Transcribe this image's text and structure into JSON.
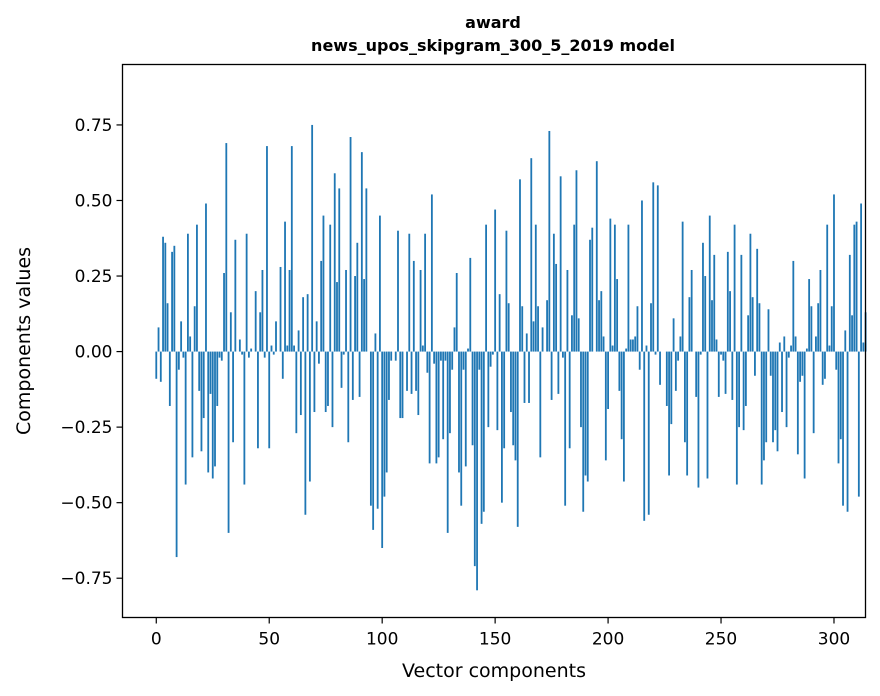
{
  "chart_data": {
    "type": "bar",
    "title": "award",
    "subtitle": "news_upos_skipgram_300_5_2019 model",
    "xlabel": "Vector components",
    "ylabel": "Components values",
    "xlim": [
      -14.95,
      313.95
    ],
    "ylim": [
      -0.88,
      0.95
    ],
    "grid": false,
    "bar_color": "#1f77b4",
    "x_ticks": [
      0,
      50,
      100,
      150,
      200,
      250,
      300
    ],
    "x_tick_labels": [
      "0",
      "50",
      "100",
      "150",
      "200",
      "250",
      "300"
    ],
    "y_ticks": [
      0.75,
      0.5,
      0.25,
      0.0,
      -0.25,
      -0.5,
      -0.75
    ],
    "y_tick_labels": [
      "0.75",
      "0.50",
      "0.25",
      "0.00",
      "−0.25",
      "−0.50",
      "−0.75"
    ],
    "values": [
      -0.09,
      0.08,
      -0.1,
      0.38,
      0.36,
      0.16,
      -0.18,
      0.33,
      0.35,
      -0.68,
      -0.06,
      0.1,
      -0.02,
      -0.44,
      0.39,
      0.05,
      -0.35,
      0.15,
      0.42,
      -0.13,
      -0.33,
      -0.22,
      0.49,
      -0.4,
      -0.14,
      -0.42,
      -0.38,
      -0.18,
      -0.02,
      -0.03,
      0.26,
      0.69,
      -0.6,
      0.13,
      -0.3,
      0.37,
      0.0,
      0.04,
      -0.01,
      -0.44,
      0.39,
      -0.02,
      0.01,
      0.0,
      0.2,
      -0.32,
      0.13,
      0.27,
      -0.02,
      0.68,
      -0.32,
      0.02,
      -0.01,
      0.1,
      0.0,
      0.28,
      -0.09,
      0.43,
      0.02,
      0.27,
      0.68,
      0.02,
      -0.27,
      0.07,
      -0.21,
      0.18,
      -0.54,
      0.19,
      -0.43,
      0.75,
      -0.2,
      0.1,
      -0.04,
      0.3,
      0.45,
      -0.2,
      -0.18,
      0.42,
      -0.25,
      0.59,
      0.23,
      0.54,
      -0.12,
      -0.01,
      0.27,
      -0.3,
      0.71,
      -0.16,
      0.25,
      0.36,
      -0.15,
      0.66,
      0.24,
      0.54,
      0.0,
      -0.51,
      -0.59,
      0.06,
      -0.52,
      0.45,
      -0.65,
      -0.48,
      -0.4,
      -0.16,
      -0.03,
      0.0,
      -0.03,
      0.4,
      -0.22,
      -0.22,
      0.0,
      -0.13,
      0.39,
      -0.14,
      0.3,
      -0.13,
      -0.21,
      0.27,
      0.02,
      0.39,
      -0.07,
      -0.37,
      0.52,
      -0.04,
      -0.37,
      -0.35,
      -0.03,
      -0.29,
      -0.03,
      -0.6,
      -0.27,
      -0.06,
      0.08,
      0.26,
      -0.4,
      -0.51,
      -0.06,
      -0.38,
      0.01,
      0.31,
      -0.31,
      -0.71,
      -0.79,
      -0.06,
      -0.57,
      -0.53,
      0.42,
      -0.25,
      -0.05,
      -0.01,
      0.47,
      -0.26,
      0.19,
      -0.5,
      -0.32,
      0.4,
      0.16,
      -0.2,
      -0.31,
      -0.36,
      -0.58,
      0.57,
      0.15,
      -0.17,
      0.06,
      -0.17,
      0.64,
      0.1,
      0.42,
      0.15,
      -0.35,
      0.08,
      0.0,
      0.17,
      0.73,
      -0.16,
      0.39,
      0.29,
      -0.14,
      0.58,
      -0.02,
      -0.51,
      0.27,
      -0.32,
      0.12,
      0.42,
      0.6,
      0.11,
      -0.25,
      -0.53,
      -0.41,
      -0.43,
      0.37,
      0.41,
      0.0,
      0.63,
      0.17,
      0.2,
      0.05,
      -0.36,
      -0.19,
      0.44,
      0.02,
      0.42,
      0.24,
      -0.13,
      -0.29,
      -0.43,
      0.01,
      0.42,
      0.04,
      0.04,
      0.05,
      0.15,
      -0.06,
      0.5,
      -0.56,
      0.02,
      -0.54,
      0.16,
      0.56,
      -0.01,
      0.55,
      -0.11,
      0.0,
      0.0,
      -0.18,
      -0.41,
      -0.24,
      0.11,
      -0.13,
      -0.03,
      0.05,
      0.43,
      -0.3,
      -0.41,
      0.18,
      0.27,
      0.0,
      -0.15,
      -0.45,
      -0.01,
      0.36,
      0.25,
      -0.42,
      0.45,
      0.17,
      0.32,
      0.04,
      -0.15,
      -0.01,
      -0.03,
      -0.14,
      0.33,
      0.2,
      -0.16,
      0.42,
      -0.44,
      -0.25,
      0.32,
      -0.26,
      -0.18,
      0.12,
      0.39,
      0.18,
      -0.08,
      0.34,
      0.16,
      -0.44,
      -0.36,
      -0.3,
      0.14,
      -0.08,
      -0.3,
      -0.26,
      -0.33,
      0.03,
      -0.2,
      0.05,
      -0.25,
      -0.02,
      0.02,
      0.3,
      0.05,
      -0.34,
      -0.1,
      -0.08,
      -0.42,
      0.01,
      0.24,
      0.15,
      -0.27,
      0.05,
      0.16,
      0.27,
      -0.11,
      -0.09,
      0.42,
      0.02,
      0.15,
      0.52,
      -0.06,
      -0.37,
      -0.29,
      -0.51,
      0.07,
      -0.53,
      0.32,
      0.12,
      0.42,
      0.43,
      -0.48,
      0.49,
      0.03,
      0.13
    ]
  }
}
